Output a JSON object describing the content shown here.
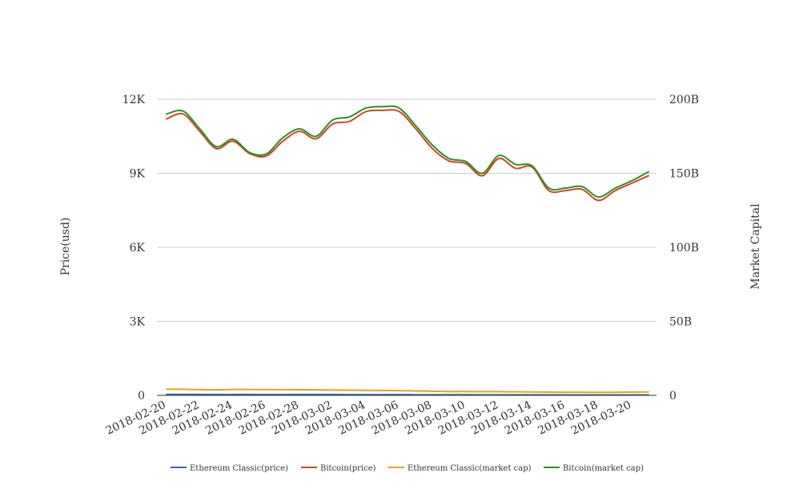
{
  "chart_data": {
    "type": "line",
    "x": [
      "2018-02-20",
      "2018-02-21",
      "2018-02-22",
      "2018-02-23",
      "2018-02-24",
      "2018-02-25",
      "2018-02-26",
      "2018-02-27",
      "2018-02-28",
      "2018-03-01",
      "2018-03-02",
      "2018-03-03",
      "2018-03-04",
      "2018-03-05",
      "2018-03-06",
      "2018-03-07",
      "2018-03-08",
      "2018-03-09",
      "2018-03-10",
      "2018-03-11",
      "2018-03-12",
      "2018-03-13",
      "2018-03-14",
      "2018-03-15",
      "2018-03-16",
      "2018-03-17",
      "2018-03-18",
      "2018-03-19",
      "2018-03-20",
      "2018-03-21"
    ],
    "x_tick_labels": [
      "2018-02-20",
      "2018-02-22",
      "2018-02-24",
      "2018-02-26",
      "2018-02-28",
      "2018-03-02",
      "2018-03-04",
      "2018-03-06",
      "2018-03-08",
      "2018-03-10",
      "2018-03-12",
      "2018-03-14",
      "2018-03-16",
      "2018-03-18",
      "2018-03-20"
    ],
    "y_left": {
      "label": "Price(usd)",
      "range": [
        0,
        12000
      ],
      "ticks": [
        0,
        3000,
        6000,
        9000,
        12000
      ],
      "tick_labels": [
        "0",
        "3K",
        "6K",
        "9K",
        "12K"
      ]
    },
    "y_right": {
      "label": "Market Capital",
      "range": [
        0,
        200000000000
      ],
      "ticks": [
        0,
        50000000000,
        100000000000,
        150000000000,
        200000000000
      ],
      "tick_labels": [
        "0",
        "50B",
        "100B",
        "150B",
        "200B"
      ]
    },
    "grid": true,
    "legend_position": "bottom",
    "series": [
      {
        "name": "Ethereum Classic(price)",
        "axis": "left",
        "color": "#2b6cb0",
        "values": [
          38,
          37,
          35,
          33,
          34,
          35,
          33,
          34,
          33,
          32,
          31,
          30,
          30,
          30,
          28,
          26,
          25,
          24,
          24,
          22,
          22,
          21,
          20,
          19,
          18,
          18,
          17,
          17,
          18,
          18
        ]
      },
      {
        "name": "Bitcoin(price)",
        "axis": "left",
        "color": "#d4441c",
        "values": [
          11200,
          11400,
          10700,
          10000,
          10300,
          9800,
          9700,
          10300,
          10700,
          10400,
          11000,
          11100,
          11500,
          11550,
          11500,
          10800,
          10000,
          9500,
          9400,
          8900,
          9600,
          9200,
          9250,
          8300,
          8300,
          8350,
          7900,
          8300,
          8600,
          8900
        ]
      },
      {
        "name": "Ethereum Classic(market cap)",
        "axis": "right",
        "color": "#e8a317",
        "values": [
          4200000000,
          4100000000,
          3900000000,
          3700000000,
          4000000000,
          4000000000,
          3900000000,
          3850000000,
          3800000000,
          3700000000,
          3600000000,
          3500000000,
          3400000000,
          3300000000,
          3200000000,
          3000000000,
          2800000000,
          2600000000,
          2600000000,
          2500000000,
          2500000000,
          2400000000,
          2300000000,
          2200000000,
          2100000000,
          2100000000,
          2000000000,
          2100000000,
          2200000000,
          2300000000
        ]
      },
      {
        "name": "Bitcoin(market cap)",
        "axis": "right",
        "color": "#2a9125",
        "values": [
          190000000000,
          192000000000,
          180000000000,
          168000000000,
          173000000000,
          164000000000,
          163000000000,
          174000000000,
          180000000000,
          175000000000,
          186000000000,
          188000000000,
          194000000000,
          195000000000,
          194000000000,
          182000000000,
          169000000000,
          160000000000,
          158000000000,
          150000000000,
          162000000000,
          156000000000,
          155000000000,
          140000000000,
          140000000000,
          141000000000,
          134000000000,
          140000000000,
          145000000000,
          151000000000
        ]
      }
    ]
  }
}
